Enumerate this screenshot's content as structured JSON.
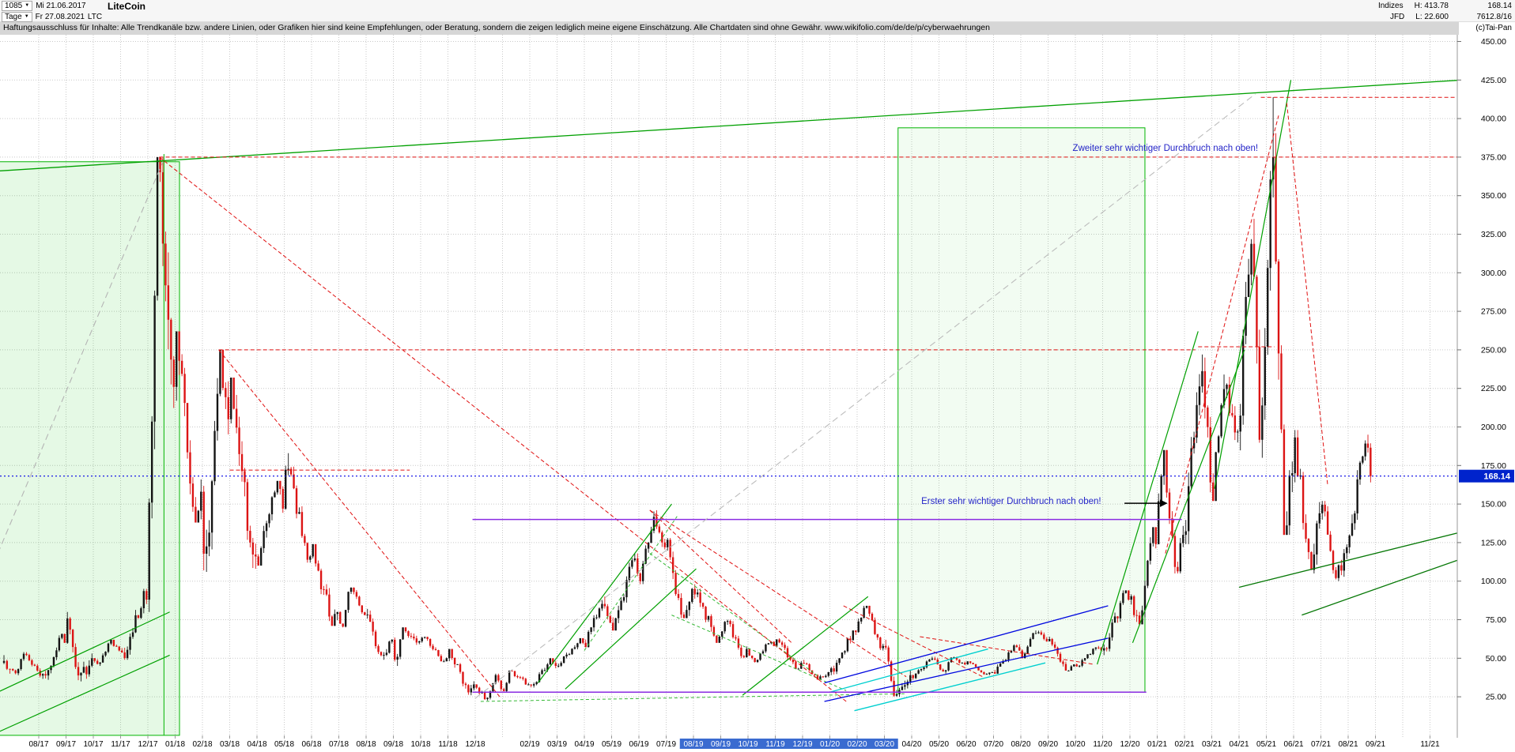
{
  "header": {
    "bars_count": "1085",
    "date_from": "Mi 21.06.2017",
    "period": "Tage",
    "date_to": "Fr 27.08.2021",
    "symbol": "LTC",
    "instrument": "LiteCoin",
    "right": {
      "provider_row1": "Indizes",
      "provider_row2": "JFD",
      "high": "H: 413.78",
      "low": "L: 22.600",
      "last": "168.14",
      "extra": "7612.8/16",
      "copyright": "(c)Tai-Pan"
    }
  },
  "disclaimer": {
    "text": "Haftungsausschluss für Inhalte: Alle Trendkanäle bzw. andere Linien, oder Grafiken hier sind keine Empfehlungen, oder Beratung, sondern die zeigen lediglich meine eigene Einschätzung. Alle Chartdaten sind ohne Gewähr.",
    "url": "www.wikifolio.com/de/de/p/cyberwaehrungen"
  },
  "chart_data": {
    "type": "candlestick",
    "instrument": "LiteCoin (LTC), Tage",
    "y_axis": {
      "min": 25,
      "max": 450,
      "step": 25
    },
    "last_price": 168.14,
    "period_high": 413.78,
    "period_low": 22.6,
    "last_bar_month": 48.87,
    "x_labels": [
      {
        "t": "08/17",
        "m": 0,
        "hl": false
      },
      {
        "t": "09/17",
        "m": 1,
        "hl": false
      },
      {
        "t": "10/17",
        "m": 2,
        "hl": false
      },
      {
        "t": "11/17",
        "m": 3,
        "hl": false
      },
      {
        "t": "12/17",
        "m": 4,
        "hl": false
      },
      {
        "t": "01/18",
        "m": 5,
        "hl": false
      },
      {
        "t": "02/18",
        "m": 6,
        "hl": false
      },
      {
        "t": "03/18",
        "m": 7,
        "hl": false
      },
      {
        "t": "04/18",
        "m": 8,
        "hl": false
      },
      {
        "t": "05/18",
        "m": 9,
        "hl": false
      },
      {
        "t": "06/18",
        "m": 10,
        "hl": false
      },
      {
        "t": "07/18",
        "m": 11,
        "hl": false
      },
      {
        "t": "08/18",
        "m": 12,
        "hl": false
      },
      {
        "t": "09/18",
        "m": 13,
        "hl": false
      },
      {
        "t": "10/18",
        "m": 14,
        "hl": false
      },
      {
        "t": "11/18",
        "m": 15,
        "hl": false
      },
      {
        "t": "12/18",
        "m": 16,
        "hl": false
      },
      {
        "t": "02/19",
        "m": 18,
        "hl": false
      },
      {
        "t": "03/19",
        "m": 19,
        "hl": false
      },
      {
        "t": "04/19",
        "m": 20,
        "hl": false
      },
      {
        "t": "05/19",
        "m": 21,
        "hl": false
      },
      {
        "t": "06/19",
        "m": 22,
        "hl": false
      },
      {
        "t": "07/19",
        "m": 23,
        "hl": false
      },
      {
        "t": "08/19",
        "m": 24,
        "hl": true
      },
      {
        "t": "09/19",
        "m": 25,
        "hl": true
      },
      {
        "t": "10/19",
        "m": 26,
        "hl": true
      },
      {
        "t": "11/19",
        "m": 27,
        "hl": true
      },
      {
        "t": "12/19",
        "m": 28,
        "hl": true
      },
      {
        "t": "01/20",
        "m": 29,
        "hl": true
      },
      {
        "t": "02/20",
        "m": 30,
        "hl": true
      },
      {
        "t": "03/20",
        "m": 31,
        "hl": true
      },
      {
        "t": "04/20",
        "m": 32,
        "hl": false
      },
      {
        "t": "05/20",
        "m": 33,
        "hl": false
      },
      {
        "t": "06/20",
        "m": 34,
        "hl": false
      },
      {
        "t": "07/20",
        "m": 35,
        "hl": false
      },
      {
        "t": "08/20",
        "m": 36,
        "hl": false
      },
      {
        "t": "09/20",
        "m": 37,
        "hl": false
      },
      {
        "t": "10/20",
        "m": 38,
        "hl": false
      },
      {
        "t": "11/20",
        "m": 39,
        "hl": false
      },
      {
        "t": "12/20",
        "m": 40,
        "hl": false
      },
      {
        "t": "01/21",
        "m": 41,
        "hl": false
      },
      {
        "t": "02/21",
        "m": 42,
        "hl": false
      },
      {
        "t": "03/21",
        "m": 43,
        "hl": false
      },
      {
        "t": "04/21",
        "m": 44,
        "hl": false
      },
      {
        "t": "05/21",
        "m": 45,
        "hl": false
      },
      {
        "t": "06/21",
        "m": 46,
        "hl": false
      },
      {
        "t": "07/21",
        "m": 47,
        "hl": false
      },
      {
        "t": "08/21",
        "m": 48,
        "hl": false
      },
      {
        "t": "09/21",
        "m": 49,
        "hl": false
      },
      {
        "t": "11/21",
        "m": 51,
        "hl": false
      }
    ],
    "monthly_ohlc_columns": [
      "month_index_0_is_Aug2017",
      "open",
      "high",
      "low",
      "close",
      "high_position",
      "low_position"
    ],
    "monthly_ohlc": [
      [
        -1.33,
        47,
        52,
        40,
        43,
        0.2,
        0.8
      ],
      [
        -1,
        43,
        54,
        39,
        42,
        0.5,
        0.25
      ],
      [
        0,
        42,
        66,
        36,
        60,
        0.9,
        0.3
      ],
      [
        1,
        60,
        80,
        35,
        50,
        0.05,
        0.5
      ],
      [
        2,
        50,
        62,
        45,
        55,
        0.7,
        0.2
      ],
      [
        3,
        55,
        95,
        49,
        88,
        0.95,
        0.15
      ],
      [
        4,
        88,
        375,
        80,
        226,
        0.42,
        0.02
      ],
      [
        5,
        226,
        262,
        138,
        158,
        0.1,
        0.8
      ],
      [
        6,
        158,
        250,
        106,
        205,
        0.68,
        0.18
      ],
      [
        7,
        205,
        232,
        108,
        116,
        0.05,
        0.92
      ],
      [
        8,
        116,
        165,
        110,
        147,
        0.8,
        0.05
      ],
      [
        9,
        147,
        183,
        112,
        116,
        0.15,
        0.9
      ],
      [
        10,
        116,
        124,
        71,
        80,
        0.05,
        0.82
      ],
      [
        11,
        80,
        96,
        70,
        78,
        0.45,
        0.2
      ],
      [
        12,
        78,
        82,
        49,
        62,
        0.05,
        0.6
      ],
      [
        13,
        62,
        70,
        45,
        61,
        0.35,
        0.15
      ],
      [
        14,
        61,
        64,
        48,
        50,
        0.2,
        0.85
      ],
      [
        15,
        50,
        56,
        26,
        33,
        0.1,
        0.85
      ],
      [
        16,
        33,
        40,
        22.6,
        30,
        0.85,
        0.45
      ],
      [
        17,
        30,
        42,
        28,
        33,
        0.3,
        0.1
      ],
      [
        18,
        33,
        50,
        31,
        45,
        0.85,
        0.1
      ],
      [
        19,
        45,
        63,
        44,
        60,
        0.9,
        0.05
      ],
      [
        20,
        60,
        90,
        57,
        73,
        0.75,
        0.05
      ],
      [
        21,
        73,
        118,
        68,
        105,
        0.9,
        0.1
      ],
      [
        22,
        105,
        146,
        98,
        122,
        0.6,
        0.05
      ],
      [
        23,
        122,
        128,
        76,
        95,
        0.05,
        0.6
      ],
      [
        24,
        95,
        98,
        60,
        64,
        0.02,
        0.95
      ],
      [
        25,
        64,
        75,
        50,
        56,
        0.3,
        0.85
      ],
      [
        26,
        56,
        61,
        47,
        58,
        0.8,
        0.3
      ],
      [
        27,
        58,
        63,
        43,
        47,
        0.1,
        0.85
      ],
      [
        28,
        47,
        49,
        36,
        41,
        0.05,
        0.6
      ],
      [
        29,
        41,
        68,
        39,
        67,
        0.95,
        0.05
      ],
      [
        30,
        67,
        84,
        55,
        58,
        0.35,
        0.95
      ],
      [
        31,
        58,
        62,
        25,
        39,
        0.05,
        0.42
      ],
      [
        32,
        39,
        51,
        36,
        46,
        0.8,
        0.05
      ],
      [
        33,
        46,
        51,
        40,
        46,
        0.5,
        0.25
      ],
      [
        34,
        46,
        48,
        39,
        41,
        0.1,
        0.8
      ],
      [
        35,
        41,
        59,
        40,
        55,
        0.9,
        0.05
      ],
      [
        36,
        55,
        68,
        50,
        61,
        0.55,
        0.1
      ],
      [
        37,
        61,
        64,
        42,
        46,
        0.05,
        0.7
      ],
      [
        38,
        46,
        58,
        44,
        55,
        0.85,
        0.1
      ],
      [
        39,
        55,
        94,
        52,
        88,
        0.9,
        0.05
      ],
      [
        40,
        88,
        135,
        72,
        124,
        0.9,
        0.4
      ],
      [
        41,
        124,
        185,
        105,
        130,
        0.3,
        0.7
      ],
      [
        42,
        130,
        247,
        124,
        164,
        0.65,
        0.05
      ],
      [
        43,
        164,
        234,
        152,
        197,
        0.45,
        0.1
      ],
      [
        44,
        197,
        335,
        180,
        252,
        0.55,
        0.82
      ],
      [
        45,
        252,
        413.78,
        130,
        170,
        0.28,
        0.68
      ],
      [
        46,
        170,
        198,
        105,
        144,
        0.03,
        0.7
      ],
      [
        47,
        144,
        152,
        100,
        122,
        0.1,
        0.6
      ],
      [
        48,
        122,
        195,
        118,
        168.14,
        0.8,
        0.05
      ]
    ],
    "trendline_columns": [
      "m1",
      "price1",
      "m2",
      "price2",
      "color",
      "width",
      "dash"
    ],
    "trendlines": [
      [
        -1.5,
        366,
        54,
        427,
        "#00a000",
        1.3,
        ""
      ],
      [
        -1.5,
        28,
        4.8,
        80,
        "#00a000",
        1.2,
        ""
      ],
      [
        -1.5,
        2,
        4.8,
        52,
        "#00a000",
        1.2,
        ""
      ],
      [
        18.3,
        34,
        23.2,
        150,
        "#00a000",
        1.2,
        ""
      ],
      [
        19.3,
        30,
        24.1,
        108,
        "#00a000",
        1.2,
        ""
      ],
      [
        25.8,
        26,
        30.4,
        90,
        "#00a000",
        1.2,
        ""
      ],
      [
        38.8,
        46,
        42.5,
        262,
        "#00a000",
        1.2,
        ""
      ],
      [
        40.1,
        60,
        44.2,
        250,
        "#00a000",
        1.2,
        ""
      ],
      [
        43.1,
        160,
        45.9,
        425,
        "#00a000",
        1.2,
        ""
      ],
      [
        44.0,
        96,
        54,
        140,
        "#067806",
        1.3,
        ""
      ],
      [
        46.3,
        78,
        54,
        126,
        "#067806",
        1.3,
        ""
      ],
      [
        4.59,
        0,
        4.59,
        377,
        "#00b400",
        1,
        ""
      ],
      [
        16.2,
        22,
        31.8,
        27,
        "#35b835",
        1,
        "4,3"
      ],
      [
        22.4,
        118,
        28.6,
        38,
        "#35b835",
        1,
        "4,3"
      ],
      [
        23.2,
        78,
        29.6,
        29,
        "#35b835",
        1,
        "4,3"
      ],
      [
        20.0,
        55,
        23.4,
        142,
        "#35b835",
        1,
        "4,3"
      ],
      [
        4.42,
        375,
        54,
        375,
        "#e01010",
        1,
        "5,3"
      ],
      [
        44.8,
        413.78,
        54,
        413.78,
        "#e01010",
        1,
        "5,3"
      ],
      [
        6.6,
        250,
        42.4,
        250,
        "#e01010",
        1,
        "5,3"
      ],
      [
        7.0,
        172,
        13.6,
        172,
        "#e01010",
        1,
        "5,3"
      ],
      [
        4.42,
        375,
        29.6,
        22,
        "#e01010",
        1,
        "5,3"
      ],
      [
        6.6,
        250,
        16.9,
        25,
        "#e01010",
        1,
        "5,3"
      ],
      [
        22.4,
        146,
        31.8,
        38,
        "#e01010",
        1,
        "5,3"
      ],
      [
        22.4,
        146,
        27.6,
        60,
        "#e01010",
        1,
        "5,3"
      ],
      [
        29.5,
        84,
        34.6,
        38,
        "#e01010",
        1,
        "5,3"
      ],
      [
        32.3,
        64,
        38.7,
        46,
        "#e01010",
        1,
        "5,3"
      ],
      [
        41.3,
        118,
        45.45,
        402,
        "#e01010",
        1,
        "5,3"
      ],
      [
        42.5,
        252,
        45.3,
        252,
        "#e01010",
        1,
        "5,3"
      ],
      [
        45.75,
        410,
        47.25,
        162,
        "#e01010",
        1,
        "5,3"
      ],
      [
        28.8,
        34,
        39.2,
        84,
        "#0008e0",
        1.3,
        ""
      ],
      [
        28.8,
        22,
        39.2,
        63,
        "#0008e0",
        1.3,
        ""
      ],
      [
        29.0,
        28,
        34.8,
        56,
        "#00cfcf",
        1.4,
        ""
      ],
      [
        29.9,
        16,
        36.9,
        47,
        "#00cfcf",
        1.4,
        ""
      ],
      [
        15.9,
        28,
        40.6,
        28,
        "#8a2be2",
        1.4,
        ""
      ],
      [
        15.9,
        140,
        41.9,
        140,
        "#8a2be2",
        1.4,
        ""
      ],
      [
        -1.5,
        118,
        4.55,
        372,
        "#b4b4b4",
        1.1,
        "8,5"
      ],
      [
        16.0,
        24,
        44.6,
        416,
        "#bcbcbc",
        1.1,
        "8,5"
      ]
    ],
    "boxes": [
      {
        "m1": -1.5,
        "p1": 0,
        "m2": 5.16,
        "p2": 372,
        "fill": "rgba(0,200,0,0.10)",
        "stroke": "#00b400"
      },
      {
        "m1": 31.5,
        "p1": 28,
        "m2": 40.55,
        "p2": 394,
        "fill": "rgba(0,200,0,0.05)",
        "stroke": "#00b400"
      }
    ],
    "annotations": [
      {
        "text": "Zweiter sehr wichtiger Durchbruch nach oben!",
        "m": 37.9,
        "p": 379,
        "color": "#2424c8"
      },
      {
        "text": "Erster sehr wichtiger Durchbruch nach oben!",
        "m": 32.35,
        "p": 150,
        "color": "#2424c8",
        "arrow": [
          39.8,
          150.5,
          41.35,
          150.5
        ]
      }
    ],
    "colors": {
      "up": "#141414",
      "down": "#dc1414",
      "grid": "#c9c9c9",
      "axis_text": "#000000",
      "last_price_line": "#0000e6",
      "price_tag_bg": "#0023cc",
      "price_tag_text": "#ffffff",
      "xlabel_highlight_bg": "#3a6bd0",
      "xlabel_highlight_text": "#ffffff"
    }
  }
}
